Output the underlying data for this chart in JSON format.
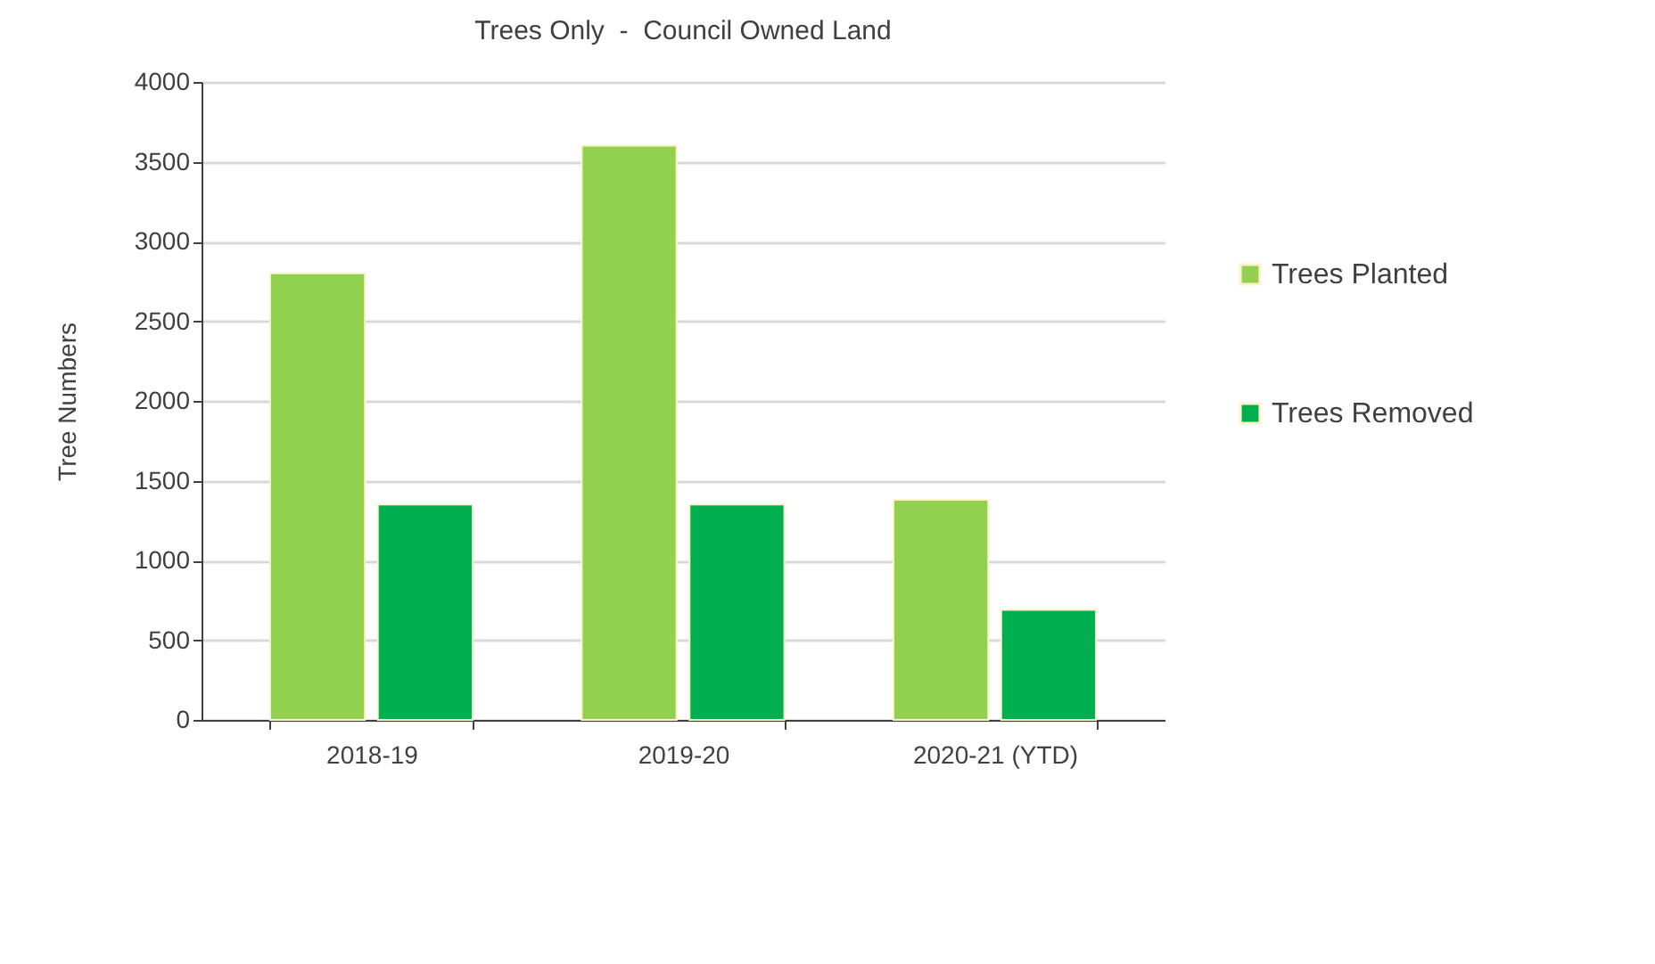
{
  "chart_data": {
    "type": "bar",
    "title": "Trees Only  -  Council Owned Land",
    "ylabel": "Tree Numbers",
    "categories": [
      "2018-19",
      "2019-20",
      "2020-21 (YTD)"
    ],
    "series": [
      {
        "name": "Trees Planted",
        "color": "#92d050",
        "values": [
          2800,
          3600,
          1380
        ]
      },
      {
        "name": "Trees Removed",
        "color": "#00b050",
        "values": [
          1350,
          1350,
          690
        ]
      }
    ],
    "ylim": [
      0,
      4000
    ],
    "yticks": [
      0,
      500,
      1000,
      1500,
      2000,
      2500,
      3000,
      3500,
      4000
    ],
    "grid": "y",
    "legend": "right"
  }
}
